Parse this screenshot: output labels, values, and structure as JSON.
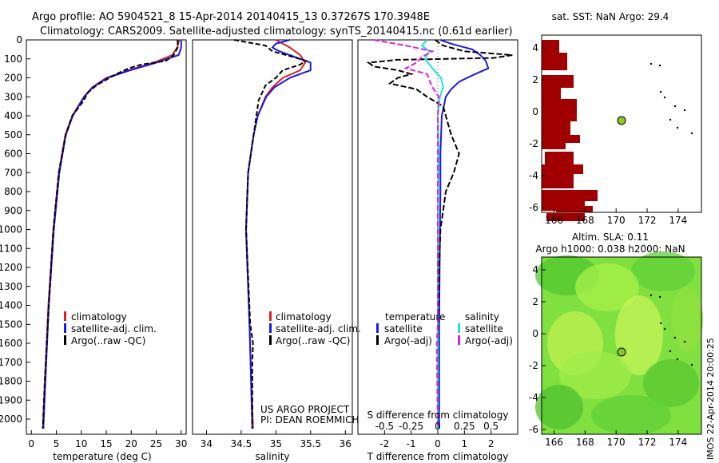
{
  "header": {
    "line1": "Argo profile: AO 5904521_8 15-Apr-2014 20140415_13 0.37267S 170.3948E",
    "line2": "Climatology: CARS2009. Satellite-adjusted climatology: synTS_20140415.nc (0.61d earlier)"
  },
  "colors": {
    "climatology": "#e02020",
    "satellite": "#1a1ae6",
    "argo": "#000000",
    "salinity_satellite": "#20e0e0",
    "salinity_argo": "#e020e0",
    "land": "#a00000",
    "float_marker": "#88cc22"
  },
  "chart_data": [
    {
      "name": "temperature-profile",
      "type": "line",
      "xlabel": "temperature (deg C)",
      "xlim": [
        -1,
        31
      ],
      "xticks": [
        "0",
        "5",
        "10",
        "15",
        "20",
        "25",
        "30"
      ],
      "ylim": [
        2080,
        0
      ],
      "yticks": [
        "0",
        "100",
        "200",
        "300",
        "400",
        "500",
        "600",
        "700",
        "800",
        "900",
        "1000",
        "1100",
        "1200",
        "1300",
        "1400",
        "1500",
        "1600",
        "1700",
        "1800",
        "1900",
        "2000"
      ],
      "legend": [
        "climatology",
        "satellite-adj. clim.",
        "Argo(..raw -QC)"
      ],
      "series": [
        {
          "name": "climatology",
          "depth": [
            0,
            40,
            80,
            120,
            160,
            200,
            250,
            300,
            400,
            500,
            700,
            1000,
            1400,
            1800,
            2050
          ],
          "values": [
            29.6,
            29.2,
            28.2,
            24.5,
            19.5,
            15,
            12.2,
            10.5,
            8.2,
            6.8,
            5.5,
            4.4,
            3.4,
            2.7,
            2.3
          ]
        },
        {
          "name": "satellite-adj. clim.",
          "depth": [
            0,
            40,
            80,
            120,
            160,
            200,
            250,
            300,
            400,
            500,
            700,
            1000,
            1400,
            1800,
            2050
          ],
          "values": [
            30,
            30,
            29.5,
            25,
            19.8,
            15.2,
            12.3,
            10.6,
            8.3,
            6.9,
            5.6,
            4.5,
            3.5,
            2.8,
            2.4
          ]
        },
        {
          "name": "Argo(..raw -QC)",
          "depth": [
            0,
            40,
            80,
            110,
            130,
            150,
            180,
            210,
            240,
            280,
            320,
            400,
            500,
            700,
            1000,
            1400,
            1800,
            2050
          ],
          "values": [
            29.3,
            29.3,
            28.5,
            27,
            22,
            19.5,
            17,
            15,
            13,
            11.2,
            10.5,
            8.2,
            6.9,
            5.5,
            4.4,
            3.5,
            2.7,
            2.3
          ]
        }
      ]
    },
    {
      "name": "salinity-profile",
      "type": "line",
      "xlabel": "salinity",
      "xlim": [
        33.8,
        36.1
      ],
      "xticks": [
        "34",
        "34.5",
        "35",
        "35.5",
        "36"
      ],
      "legend": [
        "climatology",
        "satellite-adj. clim.",
        "Argo(..raw -QC)"
      ],
      "series": [
        {
          "name": "climatology",
          "depth": [
            0,
            40,
            80,
            120,
            160,
            200,
            250,
            300,
            400,
            500,
            700,
            1000,
            1500,
            2050
          ],
          "values": [
            35,
            35.2,
            35.35,
            35.42,
            35.35,
            35.1,
            34.95,
            34.85,
            34.74,
            34.68,
            34.6,
            34.57,
            34.62,
            34.67
          ]
        },
        {
          "name": "satellite-adj. clim.",
          "depth": [
            0,
            20,
            40,
            60,
            80,
            120,
            160,
            200,
            250,
            300,
            400,
            500,
            700,
            1000,
            1500,
            2050
          ],
          "values": [
            35.2,
            35,
            34.95,
            35.05,
            35.2,
            35.5,
            35.5,
            35.2,
            34.98,
            34.86,
            34.74,
            34.68,
            34.6,
            34.57,
            34.62,
            34.66
          ]
        },
        {
          "name": "Argo(..raw -QC)",
          "depth": [
            0,
            30,
            60,
            90,
            110,
            130,
            160,
            200,
            240,
            280,
            320,
            400,
            500,
            700,
            1000,
            1500,
            1600,
            1700,
            2050
          ],
          "values": [
            34.4,
            34.85,
            34.95,
            35.25,
            35.43,
            35.35,
            35.1,
            35,
            34.85,
            34.8,
            34.75,
            34.72,
            34.68,
            34.6,
            34.57,
            34.63,
            34.67,
            34.66,
            34.66
          ]
        }
      ]
    },
    {
      "name": "difference-profile",
      "type": "line",
      "xlabel": "T difference from climatology",
      "xlim": [
        -3,
        3
      ],
      "xticks": [
        "-2",
        "-1",
        "0",
        "1",
        "2"
      ],
      "secondary_xlabel": "S difference from climatology",
      "secondary_xticks": [
        "-0.5",
        "-0.25",
        "0",
        "0.25",
        "0.5"
      ],
      "legend": {
        "temperature_title": "temperature",
        "salinity_title": "salinity",
        "items": [
          "satellite",
          "Argo(-adj)",
          "satellite",
          "Argo(-adj)"
        ]
      },
      "series": [
        {
          "name": "temperature satellite",
          "depth": [
            0,
            20,
            50,
            80,
            110,
            150,
            180,
            220,
            260,
            300,
            400,
            600,
            800,
            1000,
            1500,
            2050
          ],
          "values": [
            0.1,
            0.5,
            1.3,
            1.6,
            1.8,
            1.9,
            1.4,
            0.8,
            0.5,
            0.3,
            0.15,
            0.1,
            0.1,
            0.08,
            0.05,
            0.05
          ]
        },
        {
          "name": "temperature Argo(-adj)",
          "depth": [
            0,
            30,
            60,
            80,
            95,
            105,
            120,
            140,
            160,
            180,
            200,
            230,
            260,
            300,
            350,
            400,
            500,
            600,
            700,
            800,
            900,
            1000,
            1200,
            1500,
            2050
          ],
          "values": [
            -0.1,
            0.2,
            1,
            2.8,
            2.1,
            -1.5,
            -2.6,
            -2.4,
            -1.5,
            -1,
            -1.5,
            -1.8,
            -0.8,
            -0.4,
            0.2,
            0.3,
            0.5,
            0.8,
            0.6,
            0.3,
            0.2,
            0.1,
            0.05,
            0.02,
            0
          ]
        },
        {
          "name": "salinity satellite",
          "depth": [
            0,
            30,
            60,
            100,
            150,
            200,
            250,
            300,
            400,
            600,
            1000,
            1500,
            2050
          ],
          "values": [
            -0.1,
            -0.15,
            -0.08,
            -0.12,
            -0.05,
            0.03,
            0.05,
            0.02,
            0,
            0.01,
            0,
            0,
            0
          ]
        },
        {
          "name": "salinity Argo(-adj)",
          "depth": [
            0,
            30,
            60,
            90,
            120,
            150,
            180,
            210,
            250,
            300,
            400,
            600,
            1000,
            1500,
            1600,
            2050
          ],
          "values": [
            -0.6,
            -0.3,
            -0.05,
            -0.15,
            -0.2,
            -0.3,
            -0.1,
            -0.08,
            -0.05,
            0.01,
            0,
            0,
            0,
            0,
            -0.01,
            0
          ]
        }
      ]
    },
    {
      "name": "sst-map",
      "type": "heatmap",
      "title": "sat. SST: NaN Argo: 29.4",
      "xticks": [
        "166",
        "168",
        "170",
        "172",
        "174"
      ],
      "yticks": [
        "4",
        "2",
        "0",
        "-2",
        "-4",
        "-6"
      ],
      "float_position": {
        "lon": 170.39,
        "lat": -0.37
      }
    },
    {
      "name": "sla-map",
      "type": "heatmap",
      "title_line1": "Altim. SLA: 0.11",
      "title_line2": "Argo h1000: 0.038 h2000: NaN",
      "xticks": [
        "166",
        "168",
        "170",
        "172",
        "174"
      ],
      "yticks": [
        "4",
        "2",
        "0",
        "-2",
        "-4",
        "-6"
      ],
      "float_position": {
        "lon": 170.39,
        "lat": -0.37
      }
    }
  ],
  "footer": {
    "credit_line1": "US ARGO PROJECT",
    "credit_line2": "PI: DEAN ROEMMICH",
    "stamp": "IMOS 22-Apr-2014 20:00:25"
  }
}
